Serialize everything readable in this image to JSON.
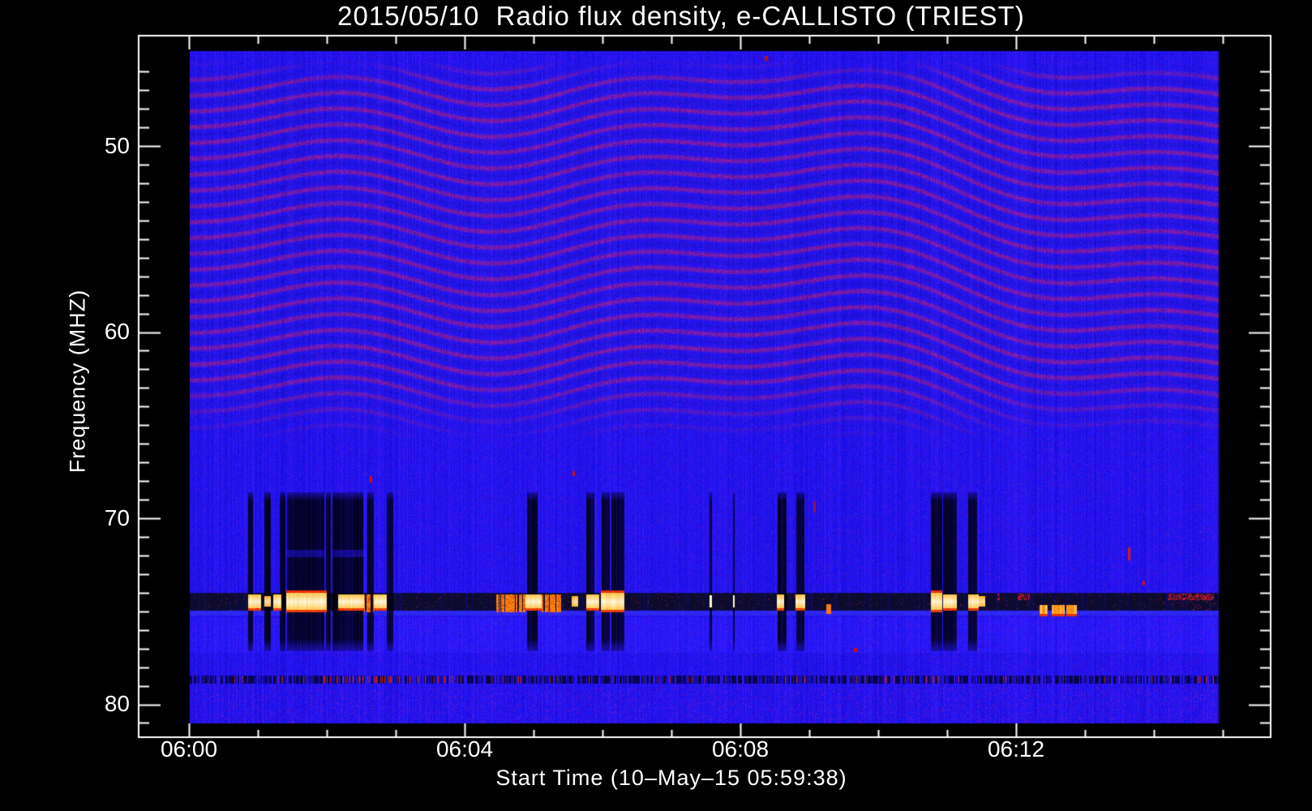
{
  "title": "2015/05/10  Radio flux density, e-CALLISTO (TRIEST)",
  "axes": {
    "x": {
      "label": "Start Time (10–May–15 05:59:38)",
      "start_time_label": "05:59:38",
      "major_ticks": [
        {
          "m": 0,
          "label": "06:00"
        },
        {
          "m": 4,
          "label": "06:04"
        },
        {
          "m": 8,
          "label": "06:08"
        },
        {
          "m": 12,
          "label": "06:12"
        }
      ],
      "minor_step_min": 1,
      "minor_range_min": [
        0,
        15
      ]
    },
    "y": {
      "label": "Frequency (MHZ)",
      "major_ticks": [
        {
          "f": 50,
          "label": "50"
        },
        {
          "f": 60,
          "label": "60"
        },
        {
          "f": 70,
          "label": "70"
        },
        {
          "f": 80,
          "label": "80"
        }
      ],
      "minor_step_mhz": 1,
      "minor_range_mhz": [
        46,
        81
      ],
      "range_mhz": [
        44.9,
        81.1
      ]
    }
  },
  "colors": {
    "page_bg": "#000000",
    "axis": "#ffffff",
    "background_blue": "#2210e8",
    "fringe_purple": "#701595",
    "band_dark": "#0a0a2e",
    "burst_white": "#fffbe0",
    "burst_warm": "#ffd24d",
    "burst_orange": "#ff8812",
    "burst_red": "#dd1c05"
  },
  "chart_data": {
    "type": "heatmap",
    "subtype": "radio-spectrogram",
    "date": "2015/05/10",
    "instrument": "e-CALLISTO (TRIEST)",
    "time_span_min": [
      0,
      14.94
    ],
    "freq_span_mhz": [
      44.9,
      81.1
    ],
    "fringes": {
      "region_mhz": [
        45.4,
        62.6
      ],
      "fade_mhz": 65.6,
      "row_spacing_px": 19.5
    },
    "rfi_band": {
      "freq_mhz": [
        74.0,
        74.95
      ],
      "core_mhz": [
        74.1,
        74.85
      ],
      "underline_mhz": [
        74.95,
        75.25
      ],
      "bright_zone_mhz": [
        75.3,
        77.25
      ]
    },
    "blank_freq_mhz": [
      68.6,
      77.15
    ],
    "blank_bars": [
      {
        "t0": 0.86,
        "t1": 0.93
      },
      {
        "t0": 1.09,
        "t1": 1.19
      },
      {
        "t0": 1.32,
        "t1": 1.4
      },
      {
        "t0": 1.42,
        "t1": 1.78,
        "light_row": true
      },
      {
        "t0": 1.78,
        "t1": 1.96,
        "light_row": true
      },
      {
        "t0": 1.99,
        "t1": 2.06
      },
      {
        "t0": 2.08,
        "t1": 2.53,
        "light_row": true
      },
      {
        "t0": 2.59,
        "t1": 2.68
      },
      {
        "t0": 2.87,
        "t1": 2.96
      },
      {
        "t0": 4.91,
        "t1": 5.06
      },
      {
        "t0": 5.76,
        "t1": 5.88
      },
      {
        "t0": 5.99,
        "t1": 6.11
      },
      {
        "t0": 6.13,
        "t1": 6.32
      },
      {
        "t0": 7.55,
        "t1": 7.59
      },
      {
        "t0": 7.89,
        "t1": 7.92
      },
      {
        "t0": 8.54,
        "t1": 8.67
      },
      {
        "t0": 8.81,
        "t1": 8.93
      },
      {
        "t0": 10.76,
        "t1": 10.93
      },
      {
        "t0": 10.94,
        "t1": 11.14
      },
      {
        "t0": 11.31,
        "t1": 11.44
      }
    ],
    "bursts": [
      {
        "t0": 0.86,
        "t1": 1.05,
        "type": "white"
      },
      {
        "t0": 1.09,
        "t1": 1.19,
        "type": "white_small"
      },
      {
        "t0": 1.22,
        "t1": 1.34,
        "type": "white"
      },
      {
        "t0": 1.41,
        "t1": 2.0,
        "type": "white_big"
      },
      {
        "t0": 2.16,
        "t1": 2.54,
        "type": "white"
      },
      {
        "t0": 2.54,
        "t1": 2.68,
        "type": "orange"
      },
      {
        "t0": 2.68,
        "t1": 2.87,
        "type": "white"
      },
      {
        "t0": 4.46,
        "t1": 4.88,
        "type": "orange"
      },
      {
        "t0": 4.88,
        "t1": 5.12,
        "type": "white"
      },
      {
        "t0": 5.12,
        "t1": 5.4,
        "type": "orange"
      },
      {
        "t0": 5.55,
        "t1": 5.65,
        "type": "white_small"
      },
      {
        "t0": 5.76,
        "t1": 5.95,
        "type": "white"
      },
      {
        "t0": 5.98,
        "t1": 6.32,
        "type": "white_big"
      },
      {
        "t0": 7.55,
        "t1": 7.59,
        "type": "white_thin"
      },
      {
        "t0": 7.89,
        "t1": 7.92,
        "type": "white_thin"
      },
      {
        "t0": 8.53,
        "t1": 8.64,
        "type": "white"
      },
      {
        "t0": 8.8,
        "t1": 8.94,
        "type": "white"
      },
      {
        "t0": 10.76,
        "t1": 10.93,
        "type": "white_big"
      },
      {
        "t0": 10.94,
        "t1": 11.14,
        "type": "white"
      },
      {
        "t0": 11.31,
        "t1": 11.46,
        "type": "white"
      },
      {
        "t0": 11.46,
        "t1": 11.55,
        "type": "white_small"
      },
      {
        "t0": 11.73,
        "t1": 11.77,
        "type": "red_dash"
      },
      {
        "t0": 12.02,
        "t1": 12.2,
        "type": "red_dash"
      },
      {
        "t0": 12.34,
        "t1": 12.46,
        "type": "orange_low"
      },
      {
        "t0": 12.52,
        "t1": 12.71,
        "type": "orange_low"
      },
      {
        "t0": 12.73,
        "t1": 12.88,
        "type": "orange_low"
      },
      {
        "t0": 14.2,
        "t1": 14.87,
        "type": "red_dash"
      }
    ],
    "speckle_line_mhz": [
      78.45,
      78.75
    ],
    "speckle_red_zone_min": [
      2.14,
      3.85
    ],
    "dots": [
      [
        2.64,
        67.9,
        3,
        8,
        "#cc1100"
      ],
      [
        5.58,
        67.6,
        3,
        6,
        "#cc1100"
      ],
      [
        8.38,
        45.3,
        4,
        6,
        "#bb1100"
      ],
      [
        9.28,
        74.9,
        6,
        12,
        "#ff7711"
      ],
      [
        9.67,
        77.1,
        4,
        5,
        "#cc1100"
      ],
      [
        13.64,
        71.9,
        3,
        16,
        "#cc2211"
      ],
      [
        13.85,
        73.5,
        3,
        6,
        "#cc1100"
      ],
      [
        9.08,
        69.4,
        3,
        14,
        "#8a1a50"
      ]
    ]
  }
}
